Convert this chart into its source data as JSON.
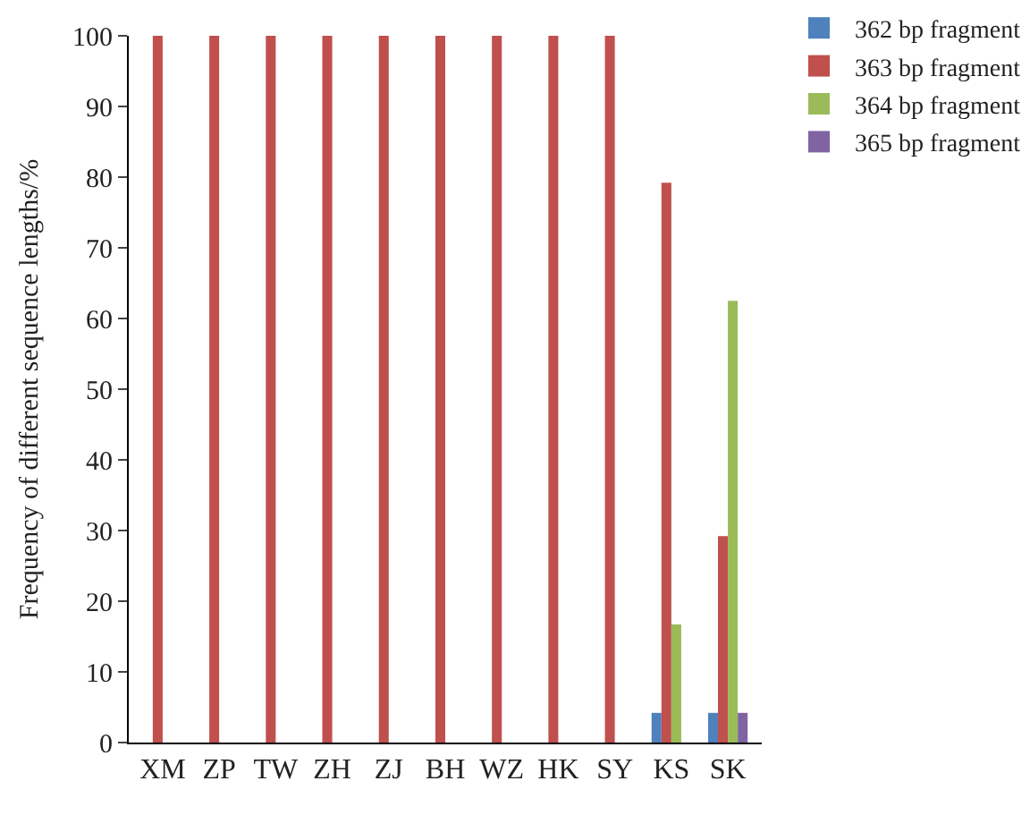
{
  "chart_data": {
    "type": "bar",
    "ylabel": "Frequency of different sequence lengths/%",
    "categories": [
      "XM",
      "ZP",
      "TW",
      "ZH",
      "ZJ",
      "BH",
      "WZ",
      "HK",
      "SY",
      "KS",
      "SK"
    ],
    "series": [
      {
        "name": "362 bp fragment",
        "color": "#4f81bd",
        "values": [
          0,
          0,
          0,
          0,
          0,
          0,
          0,
          0,
          0,
          4.2,
          4.2
        ]
      },
      {
        "name": "363 bp fragment",
        "color": "#c0504d",
        "values": [
          100,
          100,
          100,
          100,
          100,
          100,
          100,
          100,
          100,
          79.2,
          29.2
        ]
      },
      {
        "name": "364 bp fragment",
        "color": "#9bbb59",
        "values": [
          0,
          0,
          0,
          0,
          0,
          0,
          0,
          0,
          0,
          16.7,
          62.5
        ]
      },
      {
        "name": "365 bp fragment",
        "color": "#8064a2",
        "values": [
          0,
          0,
          0,
          0,
          0,
          0,
          0,
          0,
          0,
          0,
          4.2
        ]
      }
    ],
    "ylim": [
      0,
      100
    ],
    "yticks": [
      0,
      10,
      20,
      30,
      40,
      50,
      60,
      70,
      80,
      90,
      100
    ],
    "legend": "top right"
  }
}
